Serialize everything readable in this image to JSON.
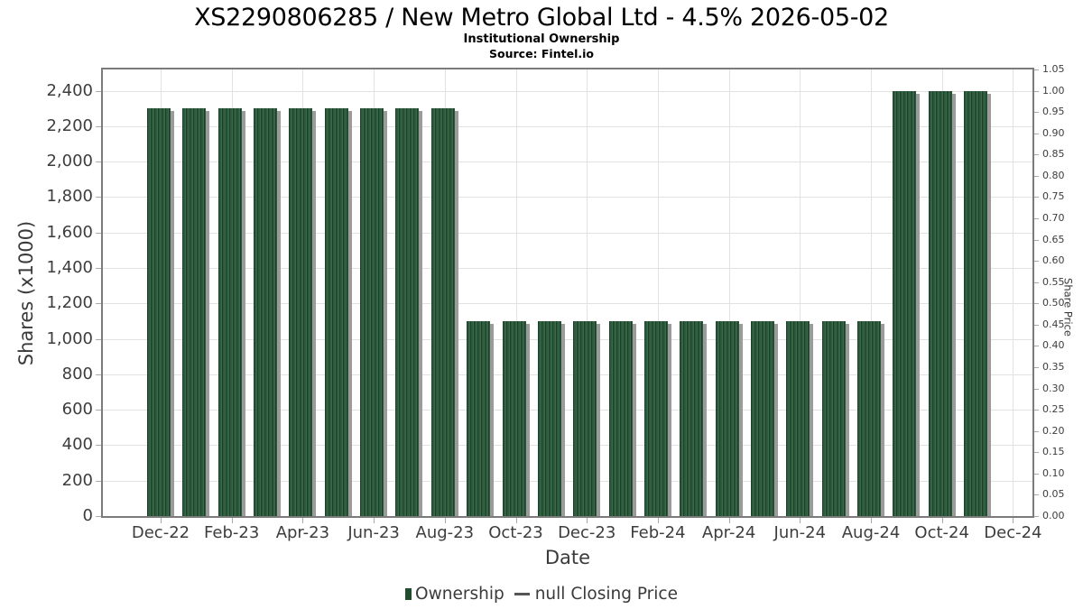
{
  "header": {
    "title": "XS2290806285 / New Metro Global Ltd - 4.5% 2026-05-02",
    "subtitle": "Institutional Ownership",
    "source": "Source: Fintel.io"
  },
  "chart_data": {
    "type": "bar",
    "title": "XS2290806285 / New Metro Global Ltd - 4.5% 2026-05-02",
    "subtitle": "Institutional Ownership",
    "source": "Source: Fintel.io",
    "xlabel": "Date",
    "ylabel_left": "Shares (x1000)",
    "ylabel_right": "Share Price",
    "grid": true,
    "legend_position": "bottom",
    "categories": [
      "Dec-22",
      "Jan-23",
      "Feb-23",
      "Mar-23",
      "Apr-23",
      "May-23",
      "Jun-23",
      "Jul-23",
      "Aug-23",
      "Sep-23",
      "Oct-23",
      "Nov-23",
      "Dec-23",
      "Jan-24",
      "Feb-24",
      "Mar-24",
      "Apr-24",
      "May-24",
      "Jun-24",
      "Jul-24",
      "Aug-24",
      "Sep-24",
      "Oct-24",
      "Nov-24"
    ],
    "series": [
      {
        "name": "Ownership",
        "axis": "left",
        "units": "shares x1000",
        "values": [
          2300,
          2300,
          2300,
          2300,
          2300,
          2300,
          2300,
          2300,
          2300,
          1100,
          1100,
          1100,
          1100,
          1100,
          1100,
          1100,
          1100,
          1100,
          1100,
          1100,
          1100,
          2400,
          2400,
          2400
        ]
      },
      {
        "name": "null Closing Price",
        "axis": "right",
        "values": null
      }
    ],
    "x_tick_labels": [
      "Dec-22",
      "Feb-23",
      "Apr-23",
      "Jun-23",
      "Aug-23",
      "Oct-23",
      "Dec-23",
      "Feb-24",
      "Apr-24",
      "Jun-24",
      "Aug-24",
      "Oct-24",
      "Dec-24"
    ],
    "left_axis": {
      "min": 0,
      "max": 2520,
      "tick_step": 200,
      "tick_values": [
        0,
        200,
        400,
        600,
        800,
        1000,
        1200,
        1400,
        1600,
        1800,
        2000,
        2200,
        2400
      ],
      "tick_labels": [
        "0",
        "200",
        "400",
        "600",
        "800",
        "1,000",
        "1,200",
        "1,400",
        "1,600",
        "1,800",
        "2,000",
        "2,200",
        "2,400"
      ]
    },
    "right_axis": {
      "min": 0,
      "max": 1.05,
      "tick_step": 0.05,
      "tick_values": [
        0,
        0.05,
        0.1,
        0.15,
        0.2,
        0.25,
        0.3,
        0.35,
        0.4,
        0.45,
        0.5,
        0.55,
        0.6,
        0.65,
        0.7,
        0.75,
        0.8,
        0.85,
        0.9,
        0.95,
        1.0,
        1.05
      ],
      "tick_labels": [
        "0.00",
        "0.05",
        "0.10",
        "0.15",
        "0.20",
        "0.25",
        "0.30",
        "0.35",
        "0.40",
        "0.45",
        "0.50",
        "0.55",
        "0.60",
        "0.65",
        "0.70",
        "0.75",
        "0.80",
        "0.85",
        "0.90",
        "0.95",
        "1.00",
        "1.05"
      ]
    }
  },
  "legend": {
    "ownership_label": "Ownership",
    "closing_price_label": "null Closing Price"
  },
  "colors": {
    "bar_stripe_dark": "#1a3f26",
    "bar_stripe_mid": "#2d5a3c",
    "bar_stripe_light": "#3a6b4a",
    "bar_shadow": "#9b9b9b",
    "legend_swatch_green": "#1f4d2e",
    "legend_dash_gray": "#555555",
    "grid_line": "#e2e2e2",
    "axis_border": "#7b7b7b",
    "tick_mark": "#a9a9a9",
    "tick_text": "#3d3d3d",
    "title_text": "#000000"
  }
}
